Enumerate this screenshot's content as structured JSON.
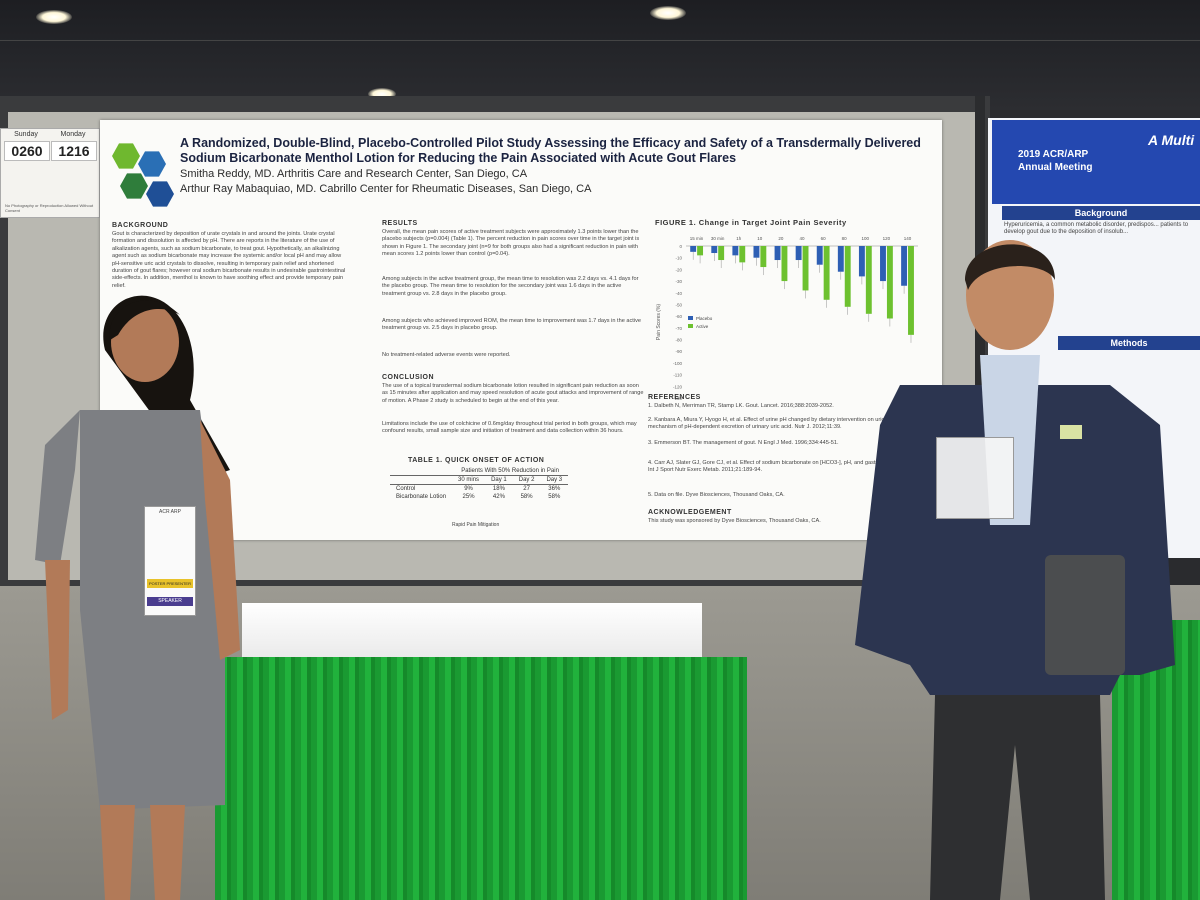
{
  "poster": {
    "title": "A Randomized, Double-Blind, Placebo-Controlled Pilot Study Assessing the Efficacy and Safety of a Transdermally Delivered Sodium Bicarbonate Menthol Lotion for Reducing the Pain Associated with Acute Gout Flares",
    "author1": "Smitha Reddy, MD. Arthritis Care and Research Center, San Diego, CA",
    "author2": "Arthur Ray Mabaquiao, MD. Cabrillo Center for Rheumatic Diseases, San Diego, CA",
    "logo_colors": [
      "#6fb82f",
      "#2a6fb5",
      "#2f7d3b",
      "#1f4f96"
    ],
    "background": {
      "heading": "BACKGROUND",
      "text": "Gout is characterized by deposition of urate crystals in and around the joints. Urate crystal formation and dissolution is affected by pH. There are reports in the literature of the use of alkalization agents, such as sodium bicarbonate, to treat gout. Hypothetically, an alkalinizing agent such as sodium bicarbonate may increase the systemic and/or local pH and may allow pH-sensitive uric acid crystals to dissolve, resulting in temporary pain relief and shortened duration of gout flares; however oral sodium bicarbonate results in undesirable gastrointestinal side-effects. In addition, menthol is known to have soothing effect and provide temporary pain relief."
    },
    "results": {
      "heading": "RESULTS",
      "p1": "Overall, the mean pain scores of active treatment subjects were approximately 1.3 points lower than the placebo subjects (p=0.004) (Table 1). The percent reduction in pain scores over time in the target joint is shown in Figure 1. The secondary joint (n=9 for both groups also had a significant reduction in pain with mean scores 1.2 points lower than control (p=0.04).",
      "p2": "Among subjects in the active treatment group, the mean time to resolution was 2.2 days vs. 4.1 days for the placebo group. The mean time to resolution for the secondary joint was 1.6 days in the active treatment group vs. 2.8 days in the placebo group.",
      "p3": "Among subjects who achieved improved ROM, the mean time to improvement was 1.7 days in the active treatment group vs. 2.5 days in placebo group.",
      "p4": "No treatment-related adverse events were reported."
    },
    "conclusion": {
      "heading": "CONCLUSION",
      "p1": "The use of a topical transdermal sodium bicarbonate lotion resulted in significant pain reduction as soon as 15 minutes after application and may speed resolution of acute gout attacks and improvement of range of motion. A Phase 2 study is scheduled to begin at the end of this year.",
      "p2": "Limitations include the use of colchicine of 0.6mg/day throughout trial period in both groups, which may confound results, small sample size and initiation of treatment and data collection within 36 hours."
    },
    "table1": {
      "heading": "TABLE 1. QUICK ONSET OF ACTION",
      "group_header": "Patients With 50% Reduction in Pain",
      "columns": [
        "30 mins",
        "Day 1",
        "Day 2",
        "Day 3"
      ],
      "rows": [
        {
          "label": "Control",
          "values": [
            "9%",
            "18%",
            "27",
            "36%"
          ]
        },
        {
          "label": "Bicarbonate Lotion",
          "values": [
            "25%",
            "42%",
            "58%",
            "58%"
          ]
        }
      ],
      "footnote": "Rapid Pain Mitigation"
    },
    "references": {
      "heading": "REFERENCES",
      "items": [
        "1. Dalbeth N, Merriman TR, Stamp LK. Gout. Lancet. 2016;388:2039-2052.",
        "2. Kanbara A, Miura Y, Hyogo H, et al. Effect of urine pH changed by dietary intervention on uric acid clearance mechanism of pH-dependent excretion of urinary uric acid. Nutr J. 2012;11:39.",
        "3. Emmerson BT. The management of gout. N Engl J Med. 1996;334:445-51.",
        "4. Carr AJ, Slater GJ, Gore CJ, et al. Effect of sodium bicarbonate on [HCO3-], pH, and gastrointestinal symptoms. Int J Sport Nutr Exerc Metab. 2011;21:189-94.",
        "5. Data on file. Dyve Biosciences, Thousand Oaks, CA."
      ]
    },
    "acknowledgement": {
      "heading": "ACKNOWLEDGEMENT",
      "text": "This study was sponsored by Dyve Biosciences, Thousand Oaks, CA."
    }
  },
  "chart_data": {
    "type": "bar",
    "title": "FIGURE 1. Change in Target Joint Pain Severity",
    "categories": [
      "15 min",
      "30 min",
      "1h",
      "10",
      "20",
      "40",
      "60",
      "80",
      "100",
      "120",
      "140"
    ],
    "series": [
      {
        "name": "Placebo",
        "color": "#2e5fb4",
        "values": [
          -5,
          -6,
          -8,
          -10,
          -12,
          -12,
          -16,
          -22,
          -26,
          -30,
          -34
        ]
      },
      {
        "name": "Active",
        "color": "#6dc12f",
        "values": [
          -8,
          -12,
          -14,
          -18,
          -30,
          -38,
          -46,
          -52,
          -58,
          -62,
          -76
        ]
      }
    ],
    "ylabel": "Pain Scores (%)",
    "ylim": [
      -130,
      0
    ],
    "yticks": [
      "0",
      "-10",
      "-20",
      "-30",
      "-40",
      "-50",
      "-60",
      "-70",
      "-80",
      "-90",
      "-100",
      "-110",
      "-120",
      "-130"
    ],
    "legend_position": "left"
  },
  "side_card": {
    "day1": "Sunday",
    "day2": "Monday",
    "num1": "0260",
    "num2": "1216",
    "note": "No Photography or Reproduction Allowed Without Consent"
  },
  "right_poster": {
    "header": "2019 ACR/ARP Annual Meeting",
    "title_partial": "A Multi",
    "section1": "Background",
    "bullet1": "Hyperuricemia, a common metabolic disorder, predispos... patients to develop gout due to the deposition of insolub...",
    "section2": "Methods"
  },
  "badges": {
    "left_ribbon1": "POSTER PRESENTER",
    "left_ribbon2": "SPEAKER",
    "left_badge_brand": "ACR ARP"
  }
}
